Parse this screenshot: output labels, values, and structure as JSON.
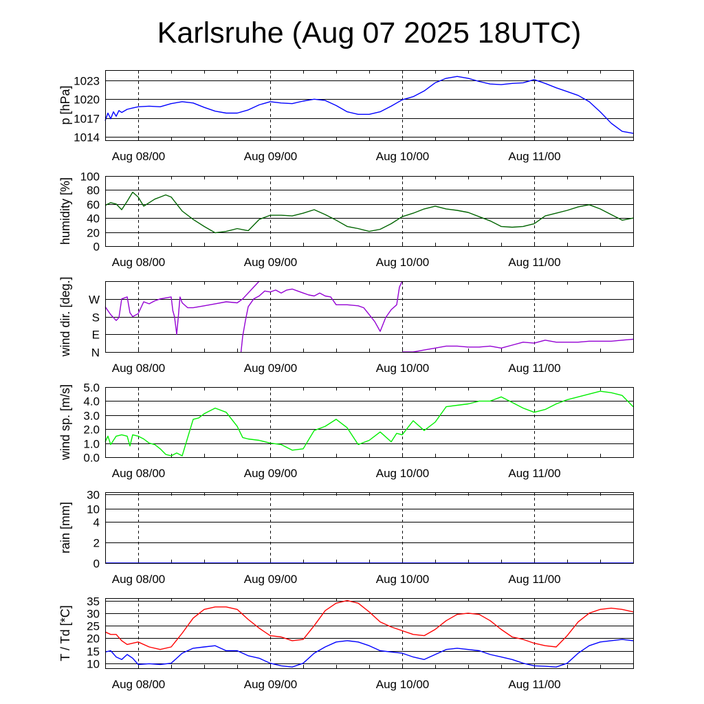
{
  "title": "Karlsruhe (Aug 07 2025 18UTC)",
  "chart_data": [
    {
      "type": "line",
      "ylabel": "p [hPa]",
      "ylim": [
        1013.5,
        1024.6
      ],
      "yticks": [
        1014,
        1017,
        1020,
        1023
      ],
      "ytick_labels": [
        "1014",
        "1017",
        "1020",
        "1023"
      ],
      "xticks": [
        "Aug 08/00",
        "Aug 09/00",
        "Aug 10/00",
        "Aug 11/00"
      ],
      "xlim_hours": [
        -6,
        90
      ],
      "series": [
        {
          "name": "pressure",
          "color": "#0000ff",
          "x": [
            -6,
            -5.5,
            -5,
            -4.5,
            -4,
            -3.5,
            -3,
            -2,
            -1,
            0,
            2,
            4,
            6,
            8,
            10,
            12,
            14,
            16,
            18,
            20,
            22,
            24,
            26,
            28,
            30,
            32,
            34,
            36,
            38,
            40,
            42,
            44,
            46,
            48,
            50,
            52,
            54,
            56,
            58,
            60,
            62,
            64,
            66,
            68,
            70,
            72,
            74,
            76,
            78,
            80,
            82,
            84,
            86,
            88,
            90
          ],
          "y": [
            1016.6,
            1017.8,
            1016.9,
            1018.0,
            1017.3,
            1018.2,
            1017.9,
            1018.4,
            1018.6,
            1018.8,
            1018.9,
            1018.8,
            1019.3,
            1019.6,
            1019.4,
            1018.7,
            1018.1,
            1017.8,
            1017.8,
            1018.3,
            1019.1,
            1019.6,
            1019.4,
            1019.3,
            1019.7,
            1020.0,
            1019.8,
            1019.0,
            1018.0,
            1017.6,
            1017.6,
            1018.0,
            1018.9,
            1019.9,
            1020.4,
            1021.3,
            1022.6,
            1023.3,
            1023.6,
            1023.3,
            1022.8,
            1022.4,
            1022.3,
            1022.5,
            1022.6,
            1023.1,
            1022.5,
            1021.8,
            1021.2,
            1020.6,
            1019.6,
            1018.0,
            1016.2,
            1014.9,
            1014.6
          ]
        }
      ]
    },
    {
      "type": "line",
      "ylabel": "humidity [%]",
      "ylim": [
        0,
        100
      ],
      "yticks": [
        0,
        20,
        40,
        60,
        80,
        100
      ],
      "ytick_labels": [
        "0",
        "20",
        "40",
        "60",
        "80",
        "100"
      ],
      "xticks": [
        "Aug 08/00",
        "Aug 09/00",
        "Aug 10/00",
        "Aug 11/00"
      ],
      "xlim_hours": [
        -6,
        90
      ],
      "series": [
        {
          "name": "humidity",
          "color": "#006400",
          "x": [
            -6,
            -5,
            -4,
            -3,
            -2,
            -1,
            0,
            1,
            2,
            3,
            4,
            5,
            6,
            7,
            8,
            10,
            12,
            14,
            16,
            18,
            20,
            22,
            24,
            26,
            28,
            30,
            32,
            34,
            36,
            38,
            40,
            42,
            44,
            46,
            48,
            50,
            52,
            54,
            56,
            58,
            60,
            62,
            64,
            66,
            68,
            70,
            72,
            74,
            76,
            78,
            80,
            82,
            84,
            86,
            88,
            90
          ],
          "y": [
            58,
            62,
            60,
            52,
            64,
            77,
            70,
            57,
            62,
            67,
            70,
            73,
            70,
            60,
            50,
            38,
            28,
            19,
            21,
            25,
            22,
            38,
            44,
            44,
            43,
            47,
            52,
            45,
            37,
            28,
            25,
            21,
            24,
            32,
            42,
            47,
            53,
            57,
            53,
            51,
            48,
            42,
            36,
            28,
            27,
            28,
            32,
            43,
            47,
            51,
            56,
            59,
            53,
            45,
            37,
            40
          ]
        }
      ]
    },
    {
      "type": "line",
      "ylabel": "wind dir. [deg.]",
      "ylim": [
        0,
        360
      ],
      "yticks": [
        0,
        90,
        180,
        270
      ],
      "ytick_labels": [
        "N",
        "E",
        "S",
        "W"
      ],
      "xticks": [
        "Aug 08/00",
        "Aug 09/00",
        "Aug 10/00",
        "Aug 11/00"
      ],
      "xlim_hours": [
        -6,
        90
      ],
      "series": [
        {
          "name": "wind direction segment 1",
          "color": "#9400d3",
          "x": [
            -6,
            -5,
            -4,
            -3.5,
            -3,
            -2.5,
            -2,
            -1.5,
            -1,
            0,
            1,
            2,
            3,
            4,
            5,
            6,
            6.3,
            6.6,
            7,
            7.3,
            7.6,
            8,
            9,
            10,
            12,
            14,
            16,
            18,
            19,
            20,
            21,
            22
          ],
          "y": [
            230,
            190,
            160,
            175,
            270,
            275,
            280,
            200,
            180,
            195,
            255,
            245,
            260,
            270,
            275,
            280,
            210,
            180,
            90,
            180,
            280,
            250,
            225,
            225,
            235,
            245,
            255,
            250,
            270,
            300,
            330,
            360
          ]
        },
        {
          "name": "wind direction segment 2",
          "color": "#9400d3",
          "x": [
            18.7,
            19,
            19.5,
            20,
            21,
            22,
            23,
            24,
            25,
            26,
            27,
            28,
            29,
            30,
            31,
            32,
            33,
            34,
            35,
            36,
            38,
            40,
            41,
            42,
            43,
            44,
            45,
            46,
            47,
            47.5,
            48
          ],
          "y": [
            0,
            80,
            160,
            230,
            270,
            285,
            310,
            305,
            315,
            300,
            315,
            320,
            310,
            300,
            290,
            285,
            300,
            285,
            280,
            240,
            240,
            235,
            225,
            190,
            155,
            105,
            175,
            215,
            240,
            330,
            360
          ]
        },
        {
          "name": "wind direction segment 3",
          "color": "#9400d3",
          "x": [
            48,
            50,
            52,
            54,
            56,
            58,
            60,
            62,
            64,
            66,
            68,
            70,
            72,
            74,
            76,
            78,
            80,
            82,
            84,
            86,
            88,
            90
          ],
          "y": [
            0,
            0,
            10,
            20,
            30,
            30,
            25,
            25,
            30,
            20,
            35,
            50,
            45,
            60,
            50,
            50,
            50,
            55,
            55,
            55,
            60,
            65
          ]
        }
      ]
    },
    {
      "type": "line",
      "ylabel": "wind sp. [m/s]",
      "ylim": [
        0,
        5.0
      ],
      "yticks": [
        0,
        1,
        2,
        3,
        4,
        5
      ],
      "ytick_labels": [
        "0.0",
        "1.0",
        "2.0",
        "3.0",
        "4.0",
        "5.0"
      ],
      "xticks": [
        "Aug 08/00",
        "Aug 09/00",
        "Aug 10/00",
        "Aug 11/00"
      ],
      "xlim_hours": [
        -6,
        90
      ],
      "series": [
        {
          "name": "wind speed",
          "color": "#00ee00",
          "x": [
            -6,
            -5.5,
            -5,
            -4,
            -3,
            -2,
            -1.5,
            -1,
            0,
            1,
            2,
            3,
            4,
            5,
            6,
            7,
            8,
            9,
            10,
            11,
            12,
            14,
            16,
            18,
            19,
            20,
            22,
            24,
            26,
            28,
            30,
            32,
            34,
            36,
            38,
            40,
            42,
            44,
            46,
            47,
            48,
            50,
            52,
            54,
            56,
            58,
            60,
            62,
            64,
            66,
            68,
            70,
            72,
            74,
            76,
            78,
            80,
            82,
            84,
            86,
            88,
            90
          ],
          "y": [
            1.1,
            1.5,
            0.9,
            1.5,
            1.6,
            1.5,
            0.8,
            1.6,
            1.5,
            1.3,
            1.0,
            0.9,
            0.6,
            0.2,
            0.1,
            0.3,
            0.1,
            1.4,
            2.7,
            2.8,
            3.1,
            3.5,
            3.2,
            2.2,
            1.4,
            1.3,
            1.2,
            1.0,
            0.9,
            0.5,
            0.6,
            1.9,
            2.2,
            2.7,
            2.1,
            0.9,
            1.2,
            1.8,
            1.1,
            1.7,
            1.6,
            2.6,
            1.9,
            2.5,
            3.6,
            3.7,
            3.8,
            4.0,
            4.0,
            4.3,
            3.9,
            3.5,
            3.2,
            3.4,
            3.8,
            4.1,
            4.3,
            4.5,
            4.7,
            4.6,
            4.4,
            3.6
          ]
        }
      ]
    },
    {
      "type": "line",
      "ylabel": "rain [mm]",
      "yticks": [
        0,
        2,
        4,
        10,
        30
      ],
      "ytick_labels": [
        "0",
        "2",
        "4",
        "10",
        "30"
      ],
      "xticks": [
        "Aug 08/00",
        "Aug 09/00",
        "Aug 10/00",
        "Aug 11/00"
      ],
      "xlim_hours": [
        -6,
        90
      ],
      "series": [
        {
          "name": "rain",
          "color": "#0000ff",
          "x": [
            -6,
            90
          ],
          "y": [
            0,
            0
          ]
        }
      ]
    },
    {
      "type": "line",
      "ylabel": "T / Td [*C]",
      "ylim": [
        8,
        36
      ],
      "yticks": [
        10,
        15,
        20,
        25,
        30,
        35
      ],
      "ytick_labels": [
        "10",
        "15",
        "20",
        "25",
        "30",
        "35"
      ],
      "xticks": [
        "Aug 08/00",
        "Aug 09/00",
        "Aug 10/00",
        "Aug 11/00"
      ],
      "xlim_hours": [
        -6,
        90
      ],
      "series": [
        {
          "name": "T",
          "color": "#ff0000",
          "x": [
            -6,
            -5,
            -4,
            -3,
            -2,
            -1,
            0,
            2,
            4,
            6,
            8,
            10,
            12,
            14,
            16,
            18,
            20,
            22,
            24,
            26,
            28,
            30,
            32,
            34,
            36,
            38,
            40,
            42,
            44,
            46,
            48,
            50,
            52,
            54,
            56,
            58,
            60,
            62,
            64,
            66,
            68,
            70,
            72,
            74,
            76,
            78,
            80,
            82,
            84,
            86,
            88,
            90
          ],
          "y": [
            22.5,
            21.5,
            21.5,
            19.0,
            17.5,
            18.0,
            18.5,
            16.5,
            15.5,
            16.5,
            22.0,
            28.0,
            31.5,
            32.5,
            32.5,
            31.5,
            27.5,
            24.0,
            21.0,
            20.5,
            19.0,
            19.5,
            25.0,
            31.0,
            34.0,
            35.0,
            34.0,
            30.5,
            26.5,
            24.5,
            23.0,
            21.5,
            21.0,
            23.5,
            27.0,
            29.5,
            30.0,
            29.5,
            27.0,
            23.5,
            20.5,
            19.5,
            18.0,
            17.0,
            16.5,
            21.0,
            26.5,
            30.0,
            31.5,
            32.0,
            31.5,
            30.5
          ]
        },
        {
          "name": "Td",
          "color": "#0000ff",
          "x": [
            -6,
            -5,
            -4,
            -3,
            -2,
            -1,
            0,
            2,
            4,
            6,
            8,
            10,
            12,
            14,
            16,
            18,
            20,
            22,
            24,
            26,
            28,
            30,
            32,
            34,
            36,
            38,
            40,
            42,
            44,
            46,
            48,
            50,
            52,
            54,
            56,
            58,
            60,
            62,
            64,
            66,
            68,
            70,
            72,
            74,
            76,
            78,
            80,
            82,
            84,
            86,
            88,
            90
          ],
          "y": [
            14.5,
            15.0,
            12.5,
            11.5,
            13.5,
            12.0,
            9.5,
            9.8,
            9.5,
            10.0,
            14.0,
            16.0,
            16.5,
            17.0,
            15.0,
            15.0,
            13.0,
            12.0,
            10.0,
            9.0,
            8.5,
            10.0,
            14.0,
            16.5,
            18.5,
            19.0,
            18.5,
            17.0,
            15.0,
            14.5,
            14.0,
            12.5,
            11.5,
            13.5,
            15.5,
            16.0,
            15.5,
            15.0,
            13.5,
            12.5,
            11.5,
            10.0,
            9.0,
            8.8,
            8.5,
            10.0,
            14.0,
            17.0,
            18.5,
            19.0,
            19.5,
            19.0
          ]
        }
      ]
    }
  ]
}
